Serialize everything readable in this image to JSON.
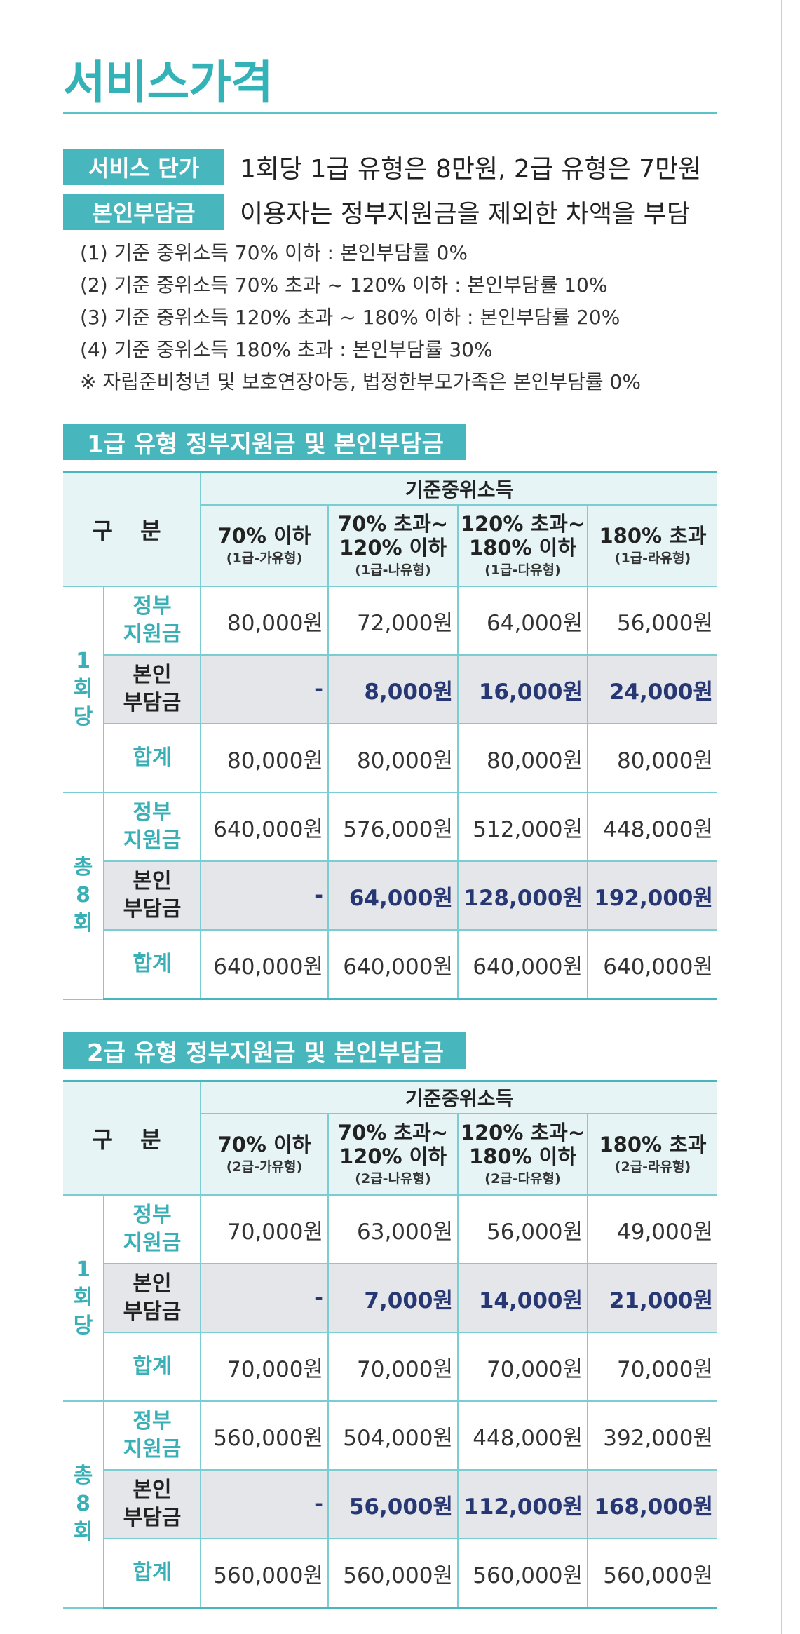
{
  "page_title": "서비스가격",
  "info": [
    {
      "label": "서비스 단가",
      "value": "1회당 1급 유형은 8만원, 2급 유형은 7만원"
    },
    {
      "label": "본인부담금",
      "value": "이용자는 정부지원금을 제외한 차액을 부담"
    }
  ],
  "notes": [
    "(1) 기준 중위소득 70% 이하 : 본인부담률 0%",
    "(2) 기준 중위소득 70% 초과 ~ 120% 이하 : 본인부담률 10%",
    "(3) 기준 중위소득 120% 초과 ~ 180% 이하 : 본인부담률 20%",
    "(4) 기준 중위소득 180% 초과 : 본인부담률 30%",
    "※ 자립준비청년 및 보호연장아동, 법정한부모가족은 본인부담률 0%"
  ],
  "tables": [
    {
      "title": "1급 유형 정부지원금 및 본인부담금",
      "header_main": "기준중위소득",
      "header_label": "구 분",
      "columns": [
        {
          "l1": "70% 이하",
          "l2": "",
          "sub": "(1급-가유형)"
        },
        {
          "l1": "70% 초과~",
          "l2": "120% 이하",
          "sub": "(1급-나유형)"
        },
        {
          "l1": "120% 초과~",
          "l2": "180% 이하",
          "sub": "(1급-다유형)"
        },
        {
          "l1": "180% 초과",
          "l2": "",
          "sub": "(1급-라유형)"
        }
      ],
      "groups": [
        {
          "chars": [
            "1",
            "회",
            "당"
          ],
          "rows": [
            {
              "l1": "정부",
              "l2": "지원금",
              "values": [
                "80,000원",
                "72,000원",
                "64,000원",
                "56,000원"
              ]
            },
            {
              "l1": "본인",
              "l2": "부담금",
              "values": [
                "-",
                "8,000원",
                "16,000원",
                "24,000원"
              ]
            },
            {
              "l1": "합계",
              "l2": "",
              "values": [
                "80,000원",
                "80,000원",
                "80,000원",
                "80,000원"
              ]
            }
          ]
        },
        {
          "chars": [
            "총",
            "8",
            "회"
          ],
          "rows": [
            {
              "l1": "정부",
              "l2": "지원금",
              "values": [
                "640,000원",
                "576,000원",
                "512,000원",
                "448,000원"
              ]
            },
            {
              "l1": "본인",
              "l2": "부담금",
              "values": [
                "-",
                "64,000원",
                "128,000원",
                "192,000원"
              ]
            },
            {
              "l1": "합계",
              "l2": "",
              "values": [
                "640,000원",
                "640,000원",
                "640,000원",
                "640,000원"
              ]
            }
          ]
        }
      ]
    },
    {
      "title": "2급 유형 정부지원금 및 본인부담금",
      "header_main": "기준중위소득",
      "header_label": "구 분",
      "columns": [
        {
          "l1": "70% 이하",
          "l2": "",
          "sub": "(2급-가유형)"
        },
        {
          "l1": "70% 초과~",
          "l2": "120% 이하",
          "sub": "(2급-나유형)"
        },
        {
          "l1": "120% 초과~",
          "l2": "180% 이하",
          "sub": "(2급-다유형)"
        },
        {
          "l1": "180% 초과",
          "l2": "",
          "sub": "(2급-라유형)"
        }
      ],
      "groups": [
        {
          "chars": [
            "1",
            "회",
            "당"
          ],
          "rows": [
            {
              "l1": "정부",
              "l2": "지원금",
              "values": [
                "70,000원",
                "63,000원",
                "56,000원",
                "49,000원"
              ]
            },
            {
              "l1": "본인",
              "l2": "부담금",
              "values": [
                "-",
                "7,000원",
                "14,000원",
                "21,000원"
              ]
            },
            {
              "l1": "합계",
              "l2": "",
              "values": [
                "70,000원",
                "70,000원",
                "70,000원",
                "70,000원"
              ]
            }
          ]
        },
        {
          "chars": [
            "총",
            "8",
            "회"
          ],
          "rows": [
            {
              "l1": "정부",
              "l2": "지원금",
              "values": [
                "560,000원",
                "504,000원",
                "448,000원",
                "392,000원"
              ]
            },
            {
              "l1": "본인",
              "l2": "부담금",
              "values": [
                "-",
                "56,000원",
                "112,000원",
                "168,000원"
              ]
            },
            {
              "l1": "합계",
              "l2": "",
              "values": [
                "560,000원",
                "560,000원",
                "560,000원",
                "560,000원"
              ]
            }
          ]
        }
      ]
    }
  ]
}
